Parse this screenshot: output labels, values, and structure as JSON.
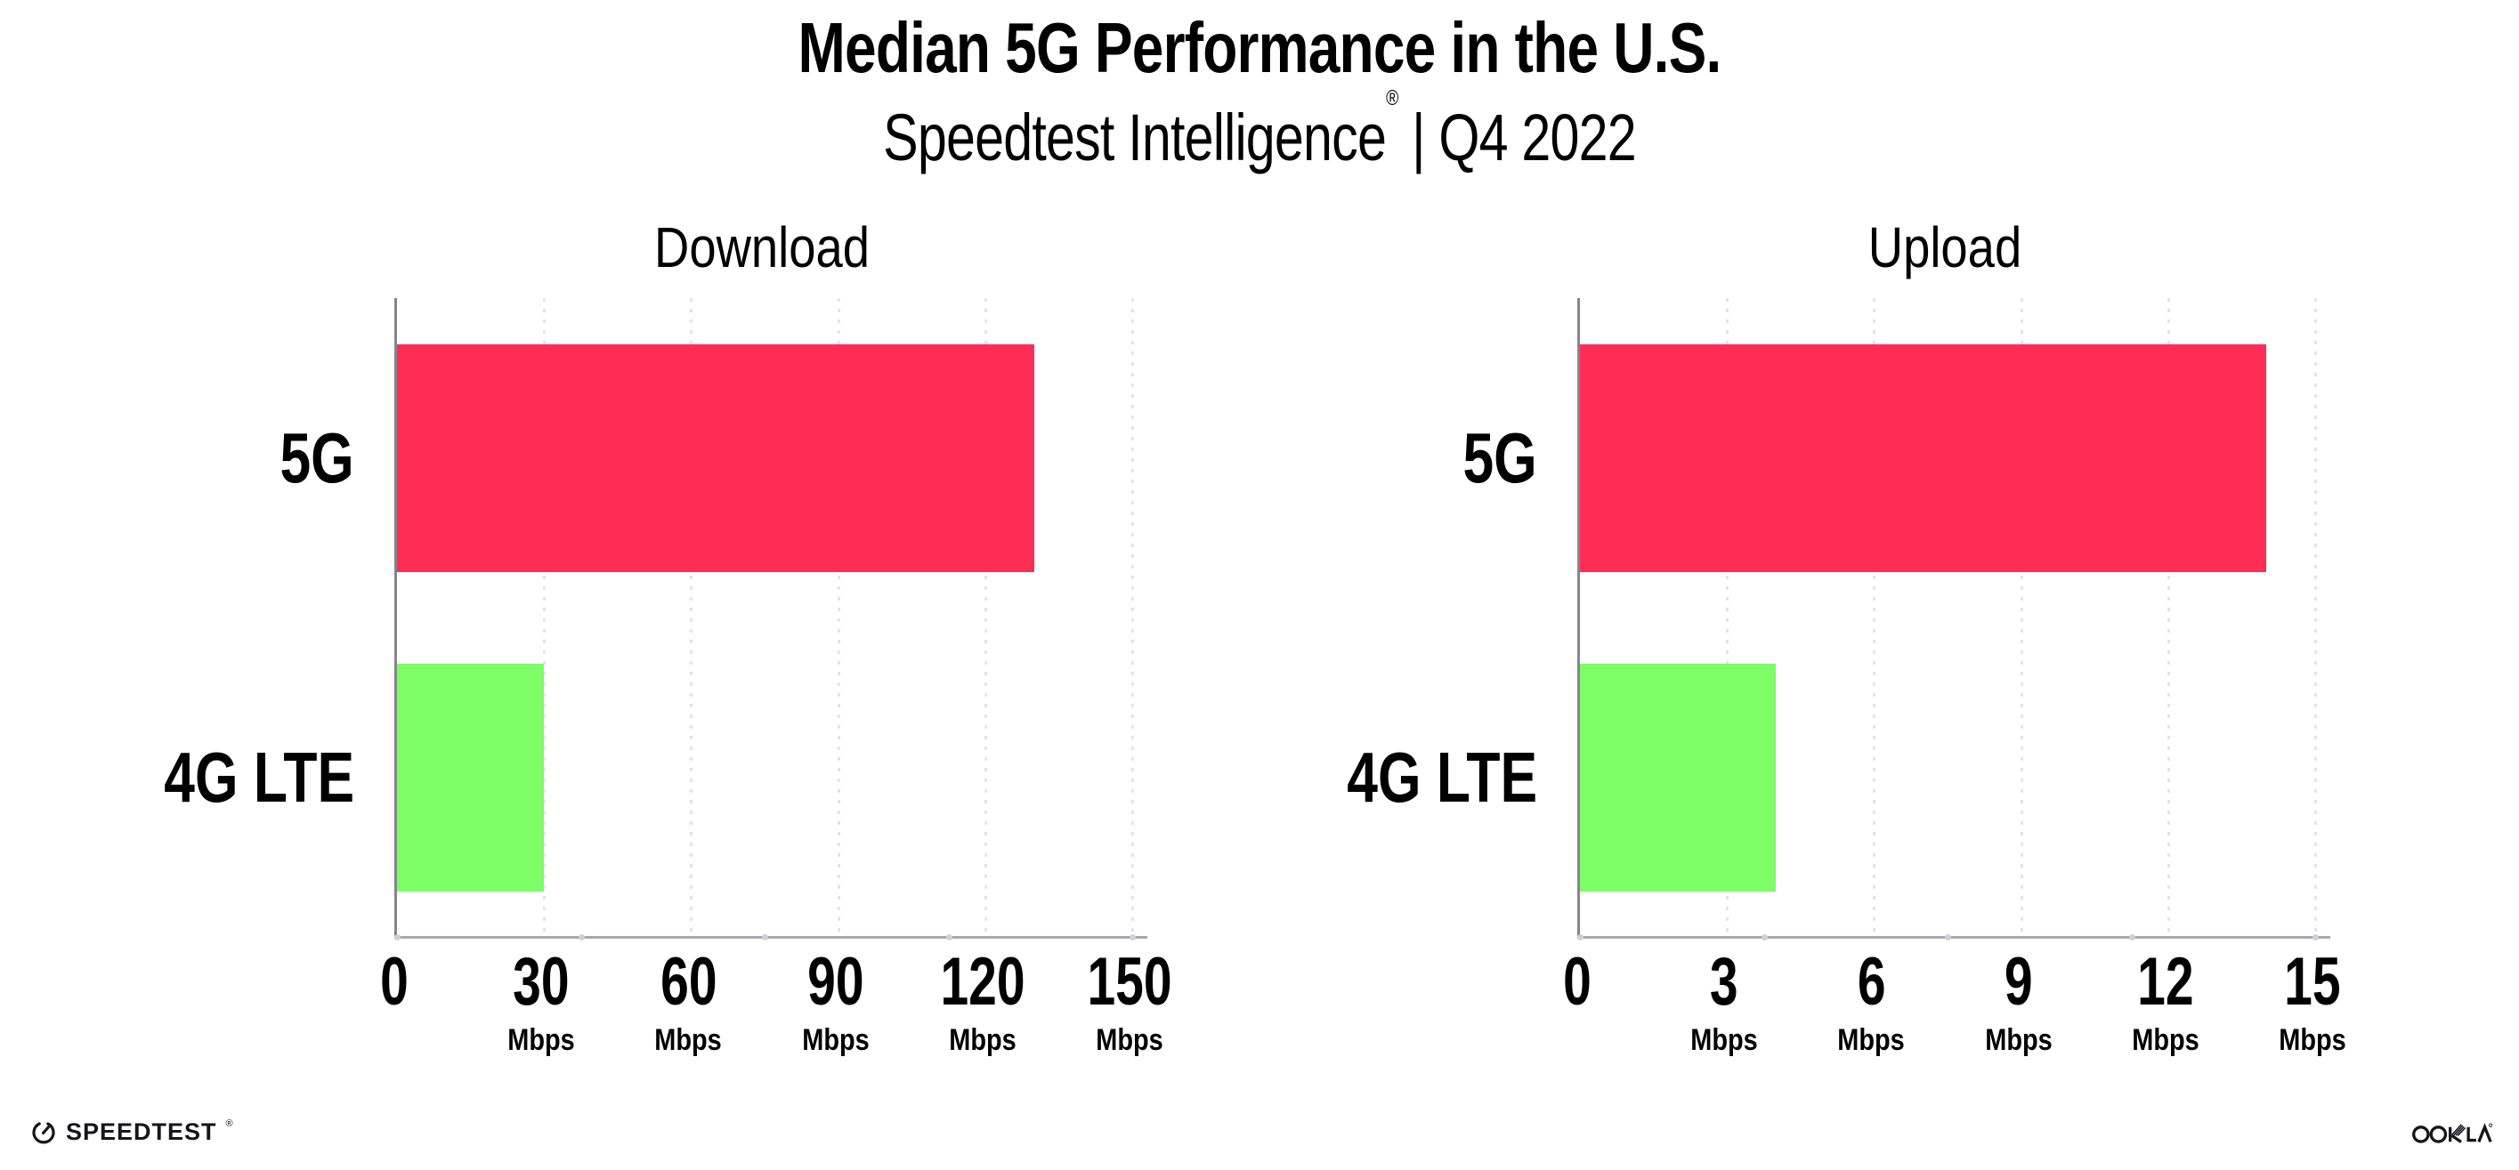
{
  "header": {
    "title": "Median 5G Performance in the U.S.",
    "subtitle_brand": "Speedtest Intelligence",
    "subtitle_reg": "®",
    "subtitle_rest": " | Q4 2022"
  },
  "chart_data": [
    {
      "type": "bar",
      "orientation": "horizontal",
      "title": "Download",
      "categories": [
        "5G",
        "4G LTE"
      ],
      "values": [
        130,
        30
      ],
      "unit": "Mbps",
      "xlabel": "",
      "xlim": [
        0,
        150
      ],
      "xticks": [
        0,
        30,
        60,
        90,
        120,
        150
      ],
      "bar_colors": [
        "#FF2D55",
        "#7DFD66"
      ],
      "grid": "vertical-dotted",
      "legend": "none"
    },
    {
      "type": "bar",
      "orientation": "horizontal",
      "title": "Upload",
      "categories": [
        "5G",
        "4G LTE"
      ],
      "values": [
        14,
        4
      ],
      "unit": "Mbps",
      "xlabel": "",
      "xlim": [
        0,
        15
      ],
      "xticks": [
        0,
        3,
        6,
        9,
        12,
        15
      ],
      "bar_colors": [
        "#FF2D55",
        "#7DFD66"
      ],
      "grid": "vertical-dotted",
      "legend": "none"
    }
  ],
  "colors": {
    "bar_5g": "#FF2D55",
    "bar_4g_lte": "#7DFD66",
    "y_axis": "#85858D",
    "x_axis": "#A7A7AF",
    "gridline_dots": "#E3E3ED",
    "axis_quarter_dots": "#CFCFDC",
    "text": "#000000",
    "logo_ink": "#15151E"
  },
  "footer": {
    "speedtest_label": "SPEEDTEST",
    "speedtest_reg": "®",
    "ookla_label": "OOKLA",
    "ookla_reg": "®"
  }
}
